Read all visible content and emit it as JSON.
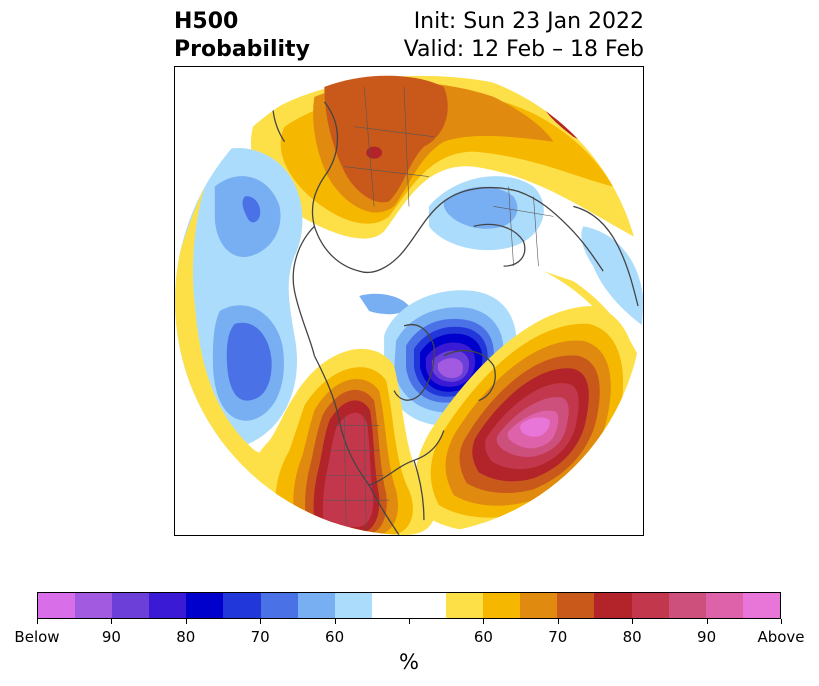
{
  "title": {
    "left_line1": "H500",
    "left_line2": "Probability",
    "right_line1": "Init: Sun 23 Jan 2022",
    "right_line2": "Valid: 12 Feb – 18 Feb"
  },
  "colorbar": {
    "colors": [
      "#d86fe8",
      "#a15ae0",
      "#6d3fd9",
      "#3a1ad4",
      "#0000cc",
      "#2237d9",
      "#4a72e6",
      "#78aef2",
      "#acdcfb",
      "#ffffff",
      "#ffffff",
      "#fde048",
      "#f5b700",
      "#e08a10",
      "#c9591b",
      "#b3232a",
      "#c3374c",
      "#cc4f7c",
      "#de62aa",
      "#e875d8"
    ],
    "tick_labels": [
      "Below",
      "90",
      "80",
      "70",
      "60",
      "",
      "60",
      "70",
      "80",
      "90",
      "Above"
    ],
    "unit": "%"
  },
  "map": {
    "anomaly_colors": {
      "above_light": "#fde048",
      "above_gold": "#f5b700",
      "above_orange": "#e08a10",
      "above_rust": "#c9591b",
      "above_red": "#b3232a",
      "above_crimson": "#c3374c",
      "above_rose": "#cc4f7c",
      "above_pink": "#de62aa",
      "above_magenta": "#e875d8",
      "below_pale": "#acdcfb",
      "below_light": "#78aef2",
      "below_mid": "#4a72e6",
      "below_blue": "#2237d9",
      "below_deep": "#0000cc",
      "below_indigo": "#3a1ad4",
      "below_violet": "#6d3fd9",
      "below_purple": "#a15ae0"
    },
    "coastline_color": "#444444"
  }
}
